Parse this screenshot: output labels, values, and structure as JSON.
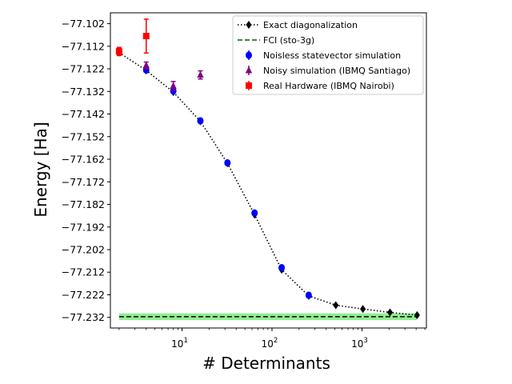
{
  "chart_data": {
    "type": "scatter",
    "title": "",
    "xlabel": "# Determinants",
    "ylabel": "Energy [Ha]",
    "xscale": "log",
    "xlim": [
      1.6,
      5200
    ],
    "ylim": [
      -77.2367,
      -77.0972
    ],
    "x_ticks": [
      {
        "value": 10,
        "base": "10",
        "exp": "1"
      },
      {
        "value": 100,
        "base": "10",
        "exp": "2"
      },
      {
        "value": 1000,
        "base": "10",
        "exp": "3"
      }
    ],
    "y_ticks": [
      "−77.102",
      "−77.112",
      "−77.122",
      "−77.132",
      "−77.142",
      "−77.152",
      "−77.162",
      "−77.172",
      "−77.182",
      "−77.192",
      "−77.202",
      "−77.212",
      "−77.222",
      "−77.232"
    ],
    "y_tick_values": [
      -77.102,
      -77.112,
      -77.122,
      -77.132,
      -77.142,
      -77.152,
      -77.162,
      -77.172,
      -77.182,
      -77.192,
      -77.202,
      -77.212,
      -77.222,
      -77.232
    ],
    "legend_position": "top-right",
    "series": [
      {
        "name": "Exact diagonalization",
        "style": "dotted-line-diamond",
        "color": "#000000",
        "x": [
          2,
          4,
          8,
          16,
          32,
          64,
          128,
          256,
          512,
          1024,
          2048,
          4096
        ],
        "y": [
          -77.1148,
          -77.1227,
          -77.1323,
          -77.1452,
          -77.1638,
          -77.1865,
          -77.2109,
          -77.2225,
          -77.2266,
          -77.2283,
          -77.2298,
          -77.231
        ]
      },
      {
        "name": "FCI (sto-3g)",
        "style": "dashed-line-band",
        "color": "#006400",
        "band_color": "#90ee90",
        "x": [
          2,
          4096
        ],
        "y": [
          -77.2317,
          -77.2317
        ],
        "band": [
          -77.2332,
          -77.2302
        ]
      },
      {
        "name": "Noisless statevector simulation",
        "style": "circle",
        "color": "#0000ff",
        "x": [
          2,
          4,
          8,
          16,
          32,
          64,
          128,
          256
        ],
        "y": [
          -77.1145,
          -77.1225,
          -77.1318,
          -77.145,
          -77.1636,
          -77.1858,
          -77.21,
          -77.2222
        ],
        "err": [
          0.0009,
          0.0007,
          0.0008,
          0.0008,
          0.0007,
          0.0008,
          0.0007,
          0.0007
        ]
      },
      {
        "name": "Noisy simulation (IBMQ Santiago)",
        "style": "triangle",
        "color": "#800080",
        "x": [
          2,
          4,
          8,
          16
        ],
        "y": [
          -77.1143,
          -77.1205,
          -77.1296,
          -77.1247
        ],
        "err": [
          0.0013,
          0.0015,
          0.002,
          0.0018
        ]
      },
      {
        "name": "Real Hardware (IBMQ Nairobi)",
        "style": "square",
        "color": "#ff0000",
        "x": [
          2,
          4
        ],
        "y": [
          -77.1143,
          -77.1075
        ],
        "err": [
          0.0018,
          0.0075
        ]
      }
    ]
  }
}
